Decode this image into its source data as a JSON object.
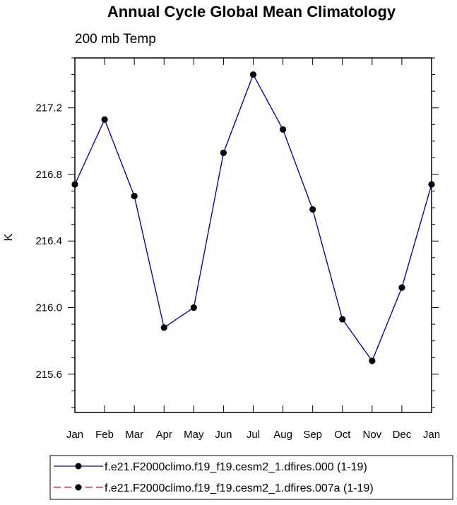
{
  "chart_data": {
    "type": "line",
    "title": "Annual Cycle Global Mean Climatology",
    "subtitle": "200 mb Temp",
    "xlabel": "",
    "ylabel": "K",
    "categories": [
      "Jan",
      "Feb",
      "Mar",
      "Apr",
      "May",
      "Jun",
      "Jul",
      "Aug",
      "Sep",
      "Oct",
      "Nov",
      "Dec",
      "Jan"
    ],
    "ylim": [
      215.37,
      217.5
    ],
    "yticks": [
      215.6,
      216.0,
      216.4,
      216.8,
      217.2
    ],
    "ytick_labels": [
      "215.6",
      "216.0",
      "216.4",
      "216.8",
      "217.2"
    ],
    "series": [
      {
        "name": "f.e21.F2000climo.f19_f19.cesm2_1.dfires.000 (1-19)",
        "color": "#0000cc",
        "style": "solid",
        "marker": "dot",
        "values": [
          216.74,
          217.13,
          216.67,
          215.88,
          216.0,
          216.93,
          217.4,
          217.07,
          216.59,
          215.93,
          215.68,
          216.12,
          216.74
        ]
      },
      {
        "name": "f.e21.F2000climo.f19_f19.cesm2_1.dfires.007a (1-19)",
        "color": "#ff0000",
        "style": "dashed",
        "marker": "dot",
        "values": [
          216.74,
          217.13,
          216.67,
          215.88,
          216.0,
          216.93,
          217.4,
          217.07,
          216.59,
          215.93,
          215.68,
          216.12,
          216.74
        ]
      }
    ],
    "grid": false,
    "legend_position": "bottom"
  }
}
